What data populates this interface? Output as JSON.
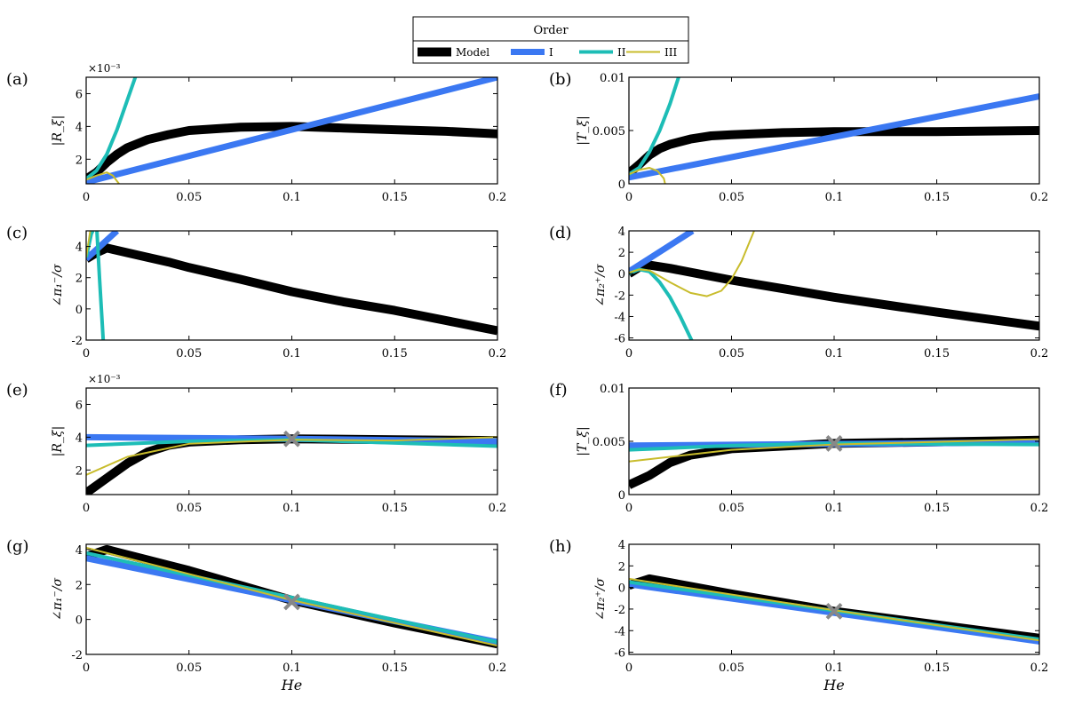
{
  "legend": {
    "title": "Order",
    "entries": [
      "Model",
      "I",
      "II",
      "III"
    ]
  },
  "colors": {
    "Model": "#000000",
    "I": "#3b78f2",
    "II": "#1dbdb6",
    "III": "#c8bc2c",
    "marker": "#888888"
  },
  "chart_data": [
    {
      "panel": "(a)",
      "type": "line",
      "ylabel": "|R_ξ|",
      "multiplier": "×10⁻³",
      "xlim": [
        0,
        0.2
      ],
      "ylim": [
        0.5,
        7
      ],
      "xticks": [
        0,
        0.05,
        0.1,
        0.15,
        0.2
      ],
      "yticks": [
        2,
        4,
        6
      ],
      "xlabel": "",
      "series": [
        {
          "name": "Model",
          "x": [
            0,
            0.005,
            0.01,
            0.015,
            0.02,
            0.03,
            0.04,
            0.05,
            0.075,
            0.1,
            0.125,
            0.15,
            0.175,
            0.2
          ],
          "y": [
            0.8,
            1.2,
            1.8,
            2.3,
            2.7,
            3.2,
            3.5,
            3.75,
            3.95,
            4.0,
            3.9,
            3.8,
            3.7,
            3.55
          ]
        },
        {
          "name": "I",
          "x": [
            0,
            0.2
          ],
          "y": [
            0.6,
            7.0
          ]
        },
        {
          "name": "II",
          "x": [
            0,
            0.005,
            0.01,
            0.015,
            0.02,
            0.025,
            0.03
          ],
          "y": [
            0.8,
            1.3,
            2.3,
            3.8,
            5.6,
            7.4,
            10
          ]
        },
        {
          "name": "III",
          "x": [
            0,
            0.005,
            0.01,
            0.013,
            0.016,
            0.02
          ],
          "y": [
            0.75,
            1.0,
            1.2,
            1.0,
            0.5,
            -1
          ]
        }
      ]
    },
    {
      "panel": "(b)",
      "type": "line",
      "ylabel": "|T_ξ|",
      "xlim": [
        0,
        0.2
      ],
      "ylim": [
        0,
        0.01
      ],
      "xticks": [
        0,
        0.05,
        0.1,
        0.15,
        0.2
      ],
      "yticks": [
        0,
        0.005,
        0.01
      ],
      "xlabel": "",
      "series": [
        {
          "name": "Model",
          "x": [
            0,
            0.005,
            0.01,
            0.015,
            0.02,
            0.03,
            0.04,
            0.05,
            0.075,
            0.1,
            0.15,
            0.2
          ],
          "y": [
            0.001,
            0.0018,
            0.0027,
            0.0033,
            0.0037,
            0.0042,
            0.0045,
            0.0046,
            0.0048,
            0.0049,
            0.0049,
            0.005
          ]
        },
        {
          "name": "I",
          "x": [
            0,
            0.2
          ],
          "y": [
            0.0006,
            0.0082
          ]
        },
        {
          "name": "II",
          "x": [
            0,
            0.005,
            0.01,
            0.015,
            0.02,
            0.025,
            0.03
          ],
          "y": [
            0.0009,
            0.0015,
            0.003,
            0.005,
            0.0075,
            0.0105,
            0.014
          ]
        },
        {
          "name": "III",
          "x": [
            0,
            0.005,
            0.01,
            0.014,
            0.017,
            0.02
          ],
          "y": [
            0.0009,
            0.0013,
            0.0015,
            0.0012,
            0.0005,
            -0.002
          ]
        }
      ]
    },
    {
      "panel": "(c)",
      "type": "line",
      "ylabel": "∠π₁⁻/σ",
      "xlim": [
        0,
        0.2
      ],
      "ylim": [
        -2,
        5
      ],
      "xticks": [
        0,
        0.05,
        0.1,
        0.15,
        0.2
      ],
      "yticks": [
        -2,
        0,
        2,
        4
      ],
      "xlabel": "",
      "series": [
        {
          "name": "Model",
          "x": [
            0,
            0.005,
            0.01,
            0.02,
            0.03,
            0.04,
            0.05,
            0.075,
            0.1,
            0.125,
            0.15,
            0.175,
            0.2
          ],
          "y": [
            3.2,
            3.6,
            3.9,
            3.6,
            3.3,
            3.0,
            2.65,
            1.9,
            1.1,
            0.45,
            -0.1,
            -0.75,
            -1.4
          ]
        },
        {
          "name": "I",
          "x": [
            0,
            0.015
          ],
          "y": [
            3.2,
            5.0
          ]
        },
        {
          "name": "II",
          "x": [
            0,
            0.0025,
            0.005,
            0.0065,
            0.0085
          ],
          "y": [
            3.3,
            4.8,
            5.5,
            2,
            -2.5
          ]
        },
        {
          "name": "III",
          "x": [
            0,
            0.002,
            0.004
          ],
          "y": [
            3.3,
            5,
            6
          ]
        }
      ]
    },
    {
      "panel": "(d)",
      "type": "line",
      "ylabel": "∠π₂⁺/σ",
      "xlim": [
        0,
        0.2
      ],
      "ylim": [
        -6.2,
        4
      ],
      "xticks": [
        0,
        0.05,
        0.1,
        0.15,
        0.2
      ],
      "yticks": [
        -6,
        -4,
        -2,
        0,
        2,
        4
      ],
      "xlabel": "",
      "series": [
        {
          "name": "Model",
          "x": [
            0,
            0.005,
            0.01,
            0.02,
            0.05,
            0.1,
            0.15,
            0.2
          ],
          "y": [
            0,
            0.6,
            0.8,
            0.5,
            -0.6,
            -2.2,
            -3.6,
            -4.9
          ]
        },
        {
          "name": "I",
          "x": [
            0,
            0.031
          ],
          "y": [
            0.2,
            4
          ]
        },
        {
          "name": "II",
          "x": [
            0,
            0.005,
            0.01,
            0.015,
            0.02,
            0.025,
            0.031
          ],
          "y": [
            0,
            0.4,
            0.2,
            -0.8,
            -2.2,
            -4,
            -6.4
          ]
        },
        {
          "name": "III",
          "x": [
            0,
            0.005,
            0.01,
            0.02,
            0.03,
            0.038,
            0.045,
            0.05,
            0.055,
            0.061
          ],
          "y": [
            0.1,
            0.4,
            0.3,
            -0.8,
            -1.8,
            -2.1,
            -1.6,
            -0.5,
            1.2,
            4
          ]
        }
      ]
    },
    {
      "panel": "(e)",
      "type": "line",
      "ylabel": "|R_ξ|",
      "multiplier": "×10⁻³",
      "xlim": [
        0,
        0.2
      ],
      "ylim": [
        0.5,
        7
      ],
      "xticks": [
        0,
        0.05,
        0.1,
        0.15,
        0.2
      ],
      "yticks": [
        2,
        4,
        6
      ],
      "xlabel": "",
      "marker": {
        "x": 0.1,
        "y": 3.9
      },
      "series": [
        {
          "name": "Model",
          "x": [
            0,
            0.01,
            0.02,
            0.03,
            0.04,
            0.05,
            0.075,
            0.1,
            0.15,
            0.2
          ],
          "y": [
            0.6,
            1.5,
            2.4,
            3.1,
            3.5,
            3.7,
            3.85,
            3.9,
            3.85,
            3.8
          ]
        },
        {
          "name": "I",
          "x": [
            0,
            0.1,
            0.2
          ],
          "y": [
            4.0,
            3.9,
            3.75
          ]
        },
        {
          "name": "II",
          "x": [
            0,
            0.05,
            0.1,
            0.2
          ],
          "y": [
            3.5,
            3.75,
            3.85,
            3.45
          ]
        },
        {
          "name": "III",
          "x": [
            0,
            0.02,
            0.05,
            0.1,
            0.15,
            0.2
          ],
          "y": [
            1.7,
            2.8,
            3.6,
            3.85,
            3.8,
            4.0
          ]
        }
      ]
    },
    {
      "panel": "(f)",
      "type": "line",
      "ylabel": "|T_ξ|",
      "xlim": [
        0,
        0.2
      ],
      "ylim": [
        0,
        0.01
      ],
      "xticks": [
        0,
        0.05,
        0.1,
        0.15,
        0.2
      ],
      "yticks": [
        0,
        0.005,
        0.01
      ],
      "xlabel": "",
      "marker": {
        "x": 0.1,
        "y": 0.0048
      },
      "series": [
        {
          "name": "Model",
          "x": [
            0,
            0.01,
            0.02,
            0.03,
            0.05,
            0.1,
            0.2
          ],
          "y": [
            0.0009,
            0.0018,
            0.003,
            0.0037,
            0.0043,
            0.0048,
            0.0051
          ]
        },
        {
          "name": "I",
          "x": [
            0,
            0.2
          ],
          "y": [
            0.0046,
            0.0049
          ]
        },
        {
          "name": "II",
          "x": [
            0,
            0.05,
            0.1,
            0.2
          ],
          "y": [
            0.0042,
            0.0046,
            0.0048,
            0.0047
          ]
        },
        {
          "name": "III",
          "x": [
            0,
            0.05,
            0.1,
            0.2
          ],
          "y": [
            0.0031,
            0.0042,
            0.0047,
            0.0052
          ]
        }
      ]
    },
    {
      "panel": "(g)",
      "type": "line",
      "ylabel": "∠π₁⁻/σ",
      "xlim": [
        0,
        0.2
      ],
      "ylim": [
        -2,
        4.3
      ],
      "xticks": [
        0,
        0.05,
        0.1,
        0.15,
        0.2
      ],
      "yticks": [
        -2,
        0,
        2,
        4
      ],
      "xlabel": "He",
      "marker": {
        "x": 0.1,
        "y": 1.0
      },
      "series": [
        {
          "name": "Model",
          "x": [
            0,
            0.01,
            0.05,
            0.1,
            0.15,
            0.2
          ],
          "y": [
            3.6,
            4.0,
            2.8,
            1.1,
            -0.2,
            -1.4
          ]
        },
        {
          "name": "I",
          "x": [
            0,
            0.2
          ],
          "y": [
            3.5,
            -1.3
          ]
        },
        {
          "name": "II",
          "x": [
            0,
            0.2
          ],
          "y": [
            3.8,
            -1.3
          ]
        },
        {
          "name": "III",
          "x": [
            0,
            0.1,
            0.2
          ],
          "y": [
            4.1,
            1.1,
            -1.5
          ]
        }
      ]
    },
    {
      "panel": "(h)",
      "type": "line",
      "ylabel": "∠π₂⁺/σ",
      "xlim": [
        0,
        0.2
      ],
      "ylim": [
        -6.2,
        4
      ],
      "xticks": [
        0,
        0.05,
        0.1,
        0.15,
        0.2
      ],
      "yticks": [
        -6,
        -4,
        -2,
        0,
        2,
        4
      ],
      "xlabel": "He",
      "marker": {
        "x": 0.1,
        "y": -2.2
      },
      "series": [
        {
          "name": "Model",
          "x": [
            0,
            0.01,
            0.05,
            0.1,
            0.2
          ],
          "y": [
            0.2,
            0.8,
            -0.6,
            -2.2,
            -4.7
          ]
        },
        {
          "name": "I",
          "x": [
            0,
            0.2
          ],
          "y": [
            0.3,
            -5.0
          ]
        },
        {
          "name": "II",
          "x": [
            0,
            0.2
          ],
          "y": [
            0.5,
            -4.8
          ]
        },
        {
          "name": "III",
          "x": [
            0,
            0.1,
            0.2
          ],
          "y": [
            0.8,
            -2.1,
            -4.9
          ]
        }
      ]
    }
  ]
}
